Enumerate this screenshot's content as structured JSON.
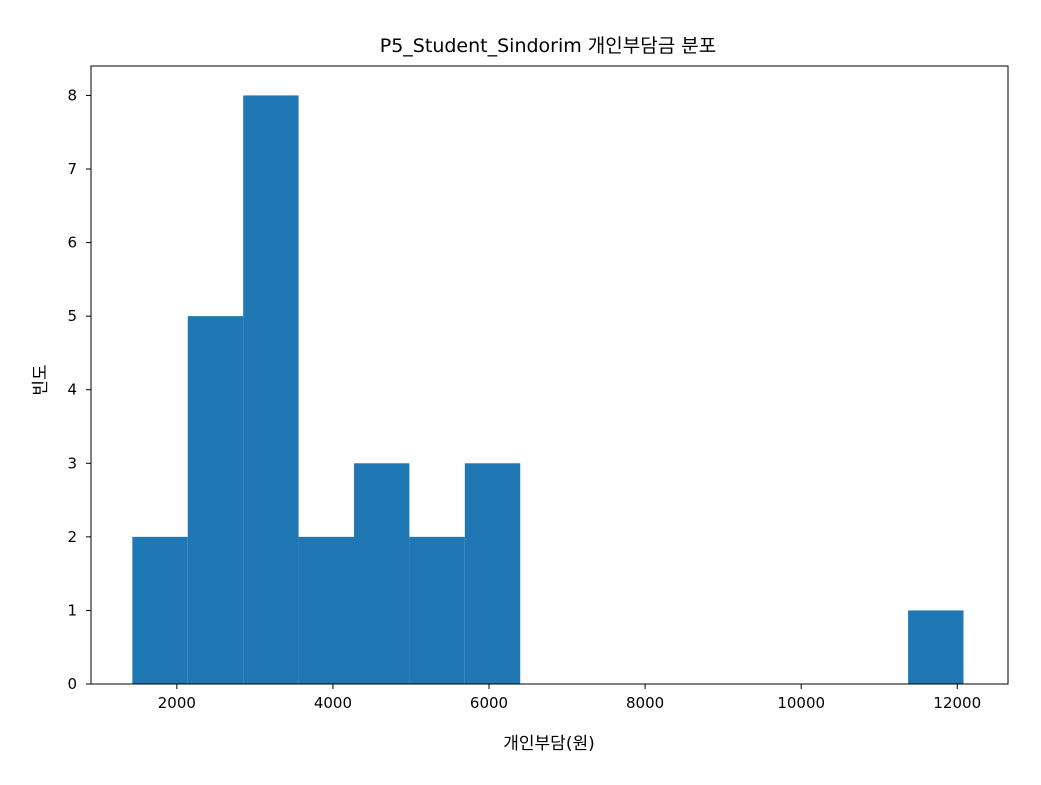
{
  "chart_data": {
    "type": "bar",
    "subtype": "histogram",
    "title": "P5_Student_Sindorim 개인부담금 분포",
    "xlabel": "개인부담(원)",
    "ylabel": "빈도",
    "xlim": [
      900,
      12650
    ],
    "ylim": [
      0,
      8.4
    ],
    "xticks": [
      2000,
      4000,
      6000,
      8000,
      10000,
      12000
    ],
    "yticks": [
      0,
      1,
      2,
      3,
      4,
      5,
      6,
      7,
      8
    ],
    "bar_color": "#1f77b4",
    "bins": [
      {
        "x0": 1430,
        "x1": 2140,
        "count": 2
      },
      {
        "x0": 2140,
        "x1": 2850,
        "count": 5
      },
      {
        "x0": 2850,
        "x1": 3560,
        "count": 8
      },
      {
        "x0": 3560,
        "x1": 4270,
        "count": 2
      },
      {
        "x0": 4270,
        "x1": 4980,
        "count": 3
      },
      {
        "x0": 4980,
        "x1": 5690,
        "count": 2
      },
      {
        "x0": 5690,
        "x1": 6400,
        "count": 3
      },
      {
        "x0": 6400,
        "x1": 7110,
        "count": 0
      },
      {
        "x0": 7110,
        "x1": 7820,
        "count": 0
      },
      {
        "x0": 7820,
        "x1": 8530,
        "count": 0
      },
      {
        "x0": 8530,
        "x1": 9240,
        "count": 0
      },
      {
        "x0": 9240,
        "x1": 9950,
        "count": 0
      },
      {
        "x0": 9950,
        "x1": 10660,
        "count": 0
      },
      {
        "x0": 10660,
        "x1": 11370,
        "count": 0
      },
      {
        "x0": 11370,
        "x1": 12080,
        "count": 1
      }
    ]
  }
}
